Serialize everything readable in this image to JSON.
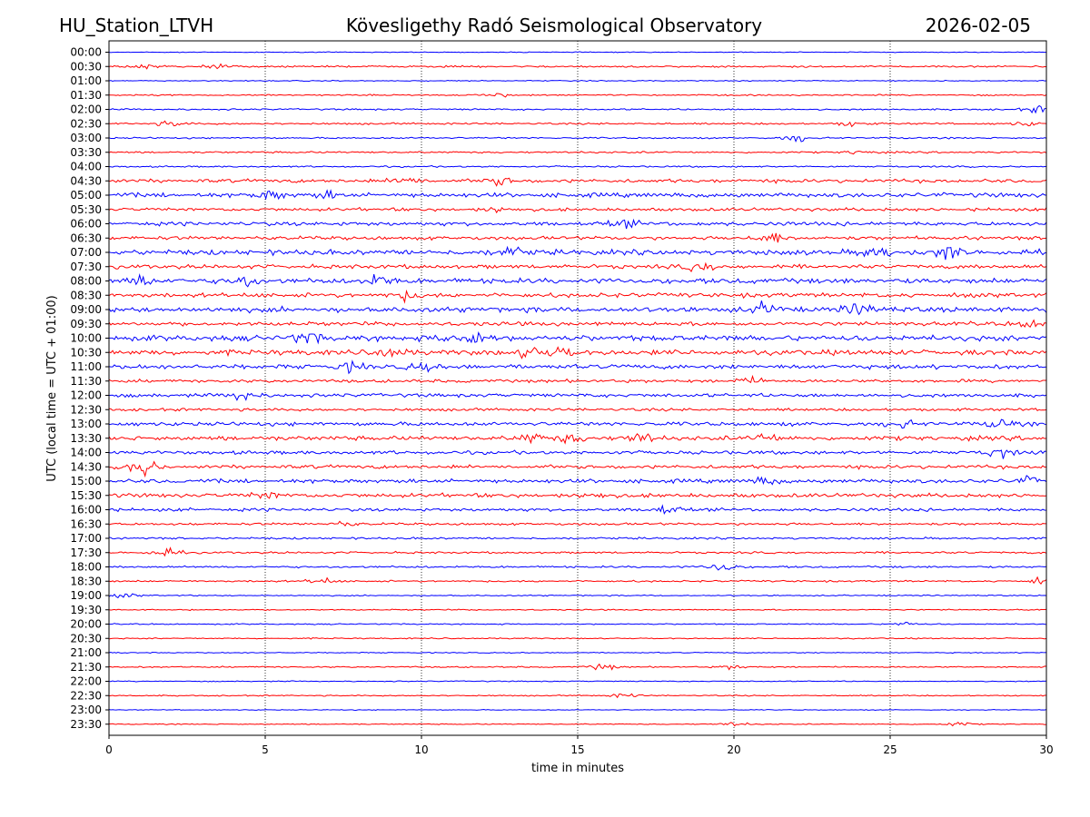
{
  "header": {
    "station": "HU_Station_LTVH",
    "observatory": "Kövesligethy Radó Seismological Observatory",
    "date": "2026-02-05"
  },
  "chart_data": {
    "type": "line",
    "title": "Kövesligethy Radó Seismological Observatory",
    "xlabel": "time in minutes",
    "ylabel": "UTC (local time = UTC + 01:00)",
    "xlim": [
      0,
      30
    ],
    "x_ticks": [
      "0",
      "5",
      "10",
      "15",
      "20",
      "25",
      "30"
    ],
    "x_tick_values": [
      0,
      5,
      10,
      15,
      20,
      25,
      30
    ],
    "grid": "vertical dotted lines at each x tick",
    "colors": {
      "even_rows": "#0000ff",
      "odd_rows": "#ff0000",
      "grid": "#000000"
    },
    "row_labels": [
      "00:00",
      "00:30",
      "01:00",
      "01:30",
      "02:00",
      "02:30",
      "03:00",
      "03:30",
      "04:00",
      "04:30",
      "05:00",
      "05:30",
      "06:00",
      "06:30",
      "07:00",
      "07:30",
      "08:00",
      "08:30",
      "09:00",
      "09:30",
      "10:00",
      "10:30",
      "11:00",
      "11:30",
      "12:00",
      "12:30",
      "13:00",
      "13:30",
      "14:00",
      "14:30",
      "15:00",
      "15:30",
      "16:00",
      "16:30",
      "17:00",
      "17:30",
      "18:00",
      "18:30",
      "19:00",
      "19:30",
      "20:00",
      "20:30",
      "21:00",
      "21:30",
      "22:00",
      "22:30",
      "23:00",
      "23:30"
    ],
    "row_noise": [
      0.4,
      0.9,
      0.5,
      0.7,
      0.8,
      0.9,
      0.8,
      0.9,
      0.8,
      1.8,
      2.2,
      1.6,
      2.0,
      1.8,
      2.6,
      2.0,
      2.6,
      2.2,
      2.6,
      2.0,
      2.8,
      2.6,
      2.2,
      1.6,
      1.8,
      1.4,
      2.0,
      2.2,
      1.8,
      1.8,
      2.0,
      2.0,
      1.6,
      1.2,
      1.0,
      1.0,
      1.0,
      0.9,
      0.6,
      0.6,
      0.6,
      0.6,
      0.5,
      0.7,
      0.5,
      0.6,
      0.4,
      0.5
    ],
    "events": [
      {
        "row": 1,
        "x": 1.2,
        "amp": 2
      },
      {
        "row": 1,
        "x": 3.4,
        "amp": 2
      },
      {
        "row": 3,
        "x": 12.5,
        "amp": 1.5
      },
      {
        "row": 4,
        "x": 29.7,
        "amp": 3
      },
      {
        "row": 5,
        "x": 2.0,
        "amp": 2.5
      },
      {
        "row": 5,
        "x": 23.8,
        "amp": 2.5
      },
      {
        "row": 5,
        "x": 29.3,
        "amp": 2
      },
      {
        "row": 6,
        "x": 22.0,
        "amp": 4
      },
      {
        "row": 7,
        "x": 24.0,
        "amp": 2
      },
      {
        "row": 9,
        "x": 9.5,
        "amp": 4
      },
      {
        "row": 9,
        "x": 12.5,
        "amp": 3.5
      },
      {
        "row": 10,
        "x": 5.2,
        "amp": 4
      },
      {
        "row": 10,
        "x": 7.0,
        "amp": 3
      },
      {
        "row": 11,
        "x": 12.5,
        "amp": 3
      },
      {
        "row": 12,
        "x": 16.5,
        "amp": 3
      },
      {
        "row": 13,
        "x": 21.2,
        "amp": 5
      },
      {
        "row": 14,
        "x": 12.8,
        "amp": 5
      },
      {
        "row": 14,
        "x": 24.5,
        "amp": 6
      },
      {
        "row": 14,
        "x": 26.8,
        "amp": 6
      },
      {
        "row": 15,
        "x": 18.9,
        "amp": 4
      },
      {
        "row": 16,
        "x": 1.0,
        "amp": 5
      },
      {
        "row": 16,
        "x": 4.3,
        "amp": 5
      },
      {
        "row": 16,
        "x": 8.6,
        "amp": 5
      },
      {
        "row": 17,
        "x": 9.5,
        "amp": 4
      },
      {
        "row": 18,
        "x": 21.0,
        "amp": 5
      },
      {
        "row": 18,
        "x": 24.0,
        "amp": 5
      },
      {
        "row": 19,
        "x": 29.5,
        "amp": 3
      },
      {
        "row": 20,
        "x": 6.3,
        "amp": 5
      },
      {
        "row": 20,
        "x": 11.0,
        "amp": 4
      },
      {
        "row": 20,
        "x": 11.8,
        "amp": 4
      },
      {
        "row": 21,
        "x": 9.0,
        "amp": 4
      },
      {
        "row": 21,
        "x": 13.5,
        "amp": 5
      },
      {
        "row": 21,
        "x": 14.5,
        "amp": 5
      },
      {
        "row": 22,
        "x": 7.8,
        "amp": 4
      },
      {
        "row": 22,
        "x": 10.0,
        "amp": 3
      },
      {
        "row": 23,
        "x": 20.5,
        "amp": 3
      },
      {
        "row": 24,
        "x": 4.3,
        "amp": 5
      },
      {
        "row": 26,
        "x": 25.3,
        "amp": 4
      },
      {
        "row": 26,
        "x": 28.5,
        "amp": 4
      },
      {
        "row": 27,
        "x": 13.5,
        "amp": 4
      },
      {
        "row": 27,
        "x": 14.8,
        "amp": 4
      },
      {
        "row": 27,
        "x": 17.0,
        "amp": 5
      },
      {
        "row": 27,
        "x": 21.0,
        "amp": 4
      },
      {
        "row": 28,
        "x": 28.5,
        "amp": 4
      },
      {
        "row": 29,
        "x": 1.1,
        "amp": 8
      },
      {
        "row": 30,
        "x": 21.0,
        "amp": 3
      },
      {
        "row": 30,
        "x": 29.5,
        "amp": 3
      },
      {
        "row": 31,
        "x": 5.0,
        "amp": 3
      },
      {
        "row": 31,
        "x": 15.5,
        "amp": 3
      },
      {
        "row": 32,
        "x": 17.8,
        "amp": 4
      },
      {
        "row": 33,
        "x": 7.5,
        "amp": 2
      },
      {
        "row": 35,
        "x": 1.8,
        "amp": 4
      },
      {
        "row": 36,
        "x": 19.6,
        "amp": 5
      },
      {
        "row": 37,
        "x": 6.8,
        "amp": 3
      },
      {
        "row": 37,
        "x": 29.8,
        "amp": 3
      },
      {
        "row": 38,
        "x": 0.5,
        "amp": 2
      },
      {
        "row": 40,
        "x": 25.5,
        "amp": 2
      },
      {
        "row": 43,
        "x": 15.8,
        "amp": 3
      },
      {
        "row": 43,
        "x": 20.0,
        "amp": 2
      },
      {
        "row": 45,
        "x": 16.5,
        "amp": 2
      },
      {
        "row": 47,
        "x": 20.0,
        "amp": 2
      },
      {
        "row": 47,
        "x": 27.2,
        "amp": 2
      }
    ]
  }
}
